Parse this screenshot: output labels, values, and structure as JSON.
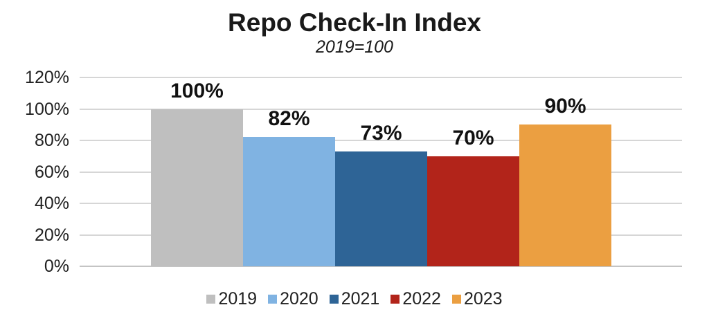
{
  "title": "Repo Check-In Index",
  "subtitle": "2019=100",
  "colors": {
    "background": "#ffffff",
    "gridline": "#d6d6d6",
    "axis_line": "#c4c4c4",
    "tick_text": "#212121",
    "label_text": "#111111",
    "title_text": "#1a1a1a"
  },
  "chart_data": {
    "type": "bar",
    "title": "Repo Check-In Index",
    "subtitle": "2019=100",
    "categories": [
      "2019",
      "2020",
      "2021",
      "2022",
      "2023"
    ],
    "values": [
      100,
      82,
      73,
      70,
      90
    ],
    "data_labels": [
      "100%",
      "82%",
      "73%",
      "70%",
      "90%"
    ],
    "series_colors": [
      "#bfbfbf",
      "#80b3e2",
      "#2e6496",
      "#b2241a",
      "#eb9f41"
    ],
    "xlabel": "",
    "ylabel": "",
    "ylim": [
      0,
      120
    ],
    "ytick_step": 20,
    "ytick_labels": [
      "0%",
      "20%",
      "40%",
      "60%",
      "80%",
      "100%",
      "120%"
    ],
    "grid": true,
    "legend_position": "bottom",
    "legend": [
      "2019",
      "2020",
      "2021",
      "2022",
      "2023"
    ]
  }
}
